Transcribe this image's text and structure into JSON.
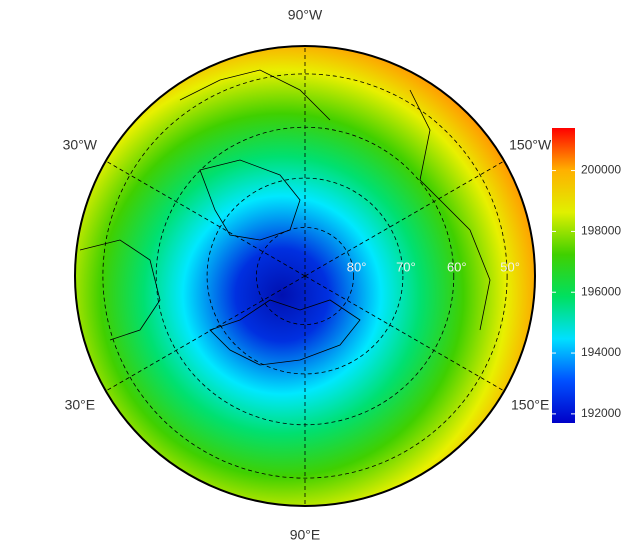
{
  "chart_data": {
    "type": "polar-map",
    "lon_ticks": [
      {
        "value": -90,
        "label": "90°W"
      },
      {
        "value": -30,
        "label": "30°W"
      },
      {
        "value": -150,
        "label": "150°W"
      },
      {
        "value": 30,
        "label": "30°E"
      },
      {
        "value": 150,
        "label": "150°E"
      },
      {
        "value": 90,
        "label": "90°E"
      }
    ],
    "lat_limit": 45,
    "lat_ticks": [
      {
        "value": 80,
        "label": "80°"
      },
      {
        "value": 70,
        "label": "70°"
      },
      {
        "value": 60,
        "label": "60°"
      },
      {
        "value": 50,
        "label": "50°"
      }
    ],
    "colorbar": {
      "clim": [
        191700,
        201400
      ],
      "ticks": [
        192000,
        194000,
        196000,
        198000,
        200000
      ],
      "colors": [
        "#0000c8",
        "#0050ff",
        "#00e0ff",
        "#00e060",
        "#40d000",
        "#e0f000",
        "#ffb000",
        "#ff0000"
      ]
    }
  }
}
